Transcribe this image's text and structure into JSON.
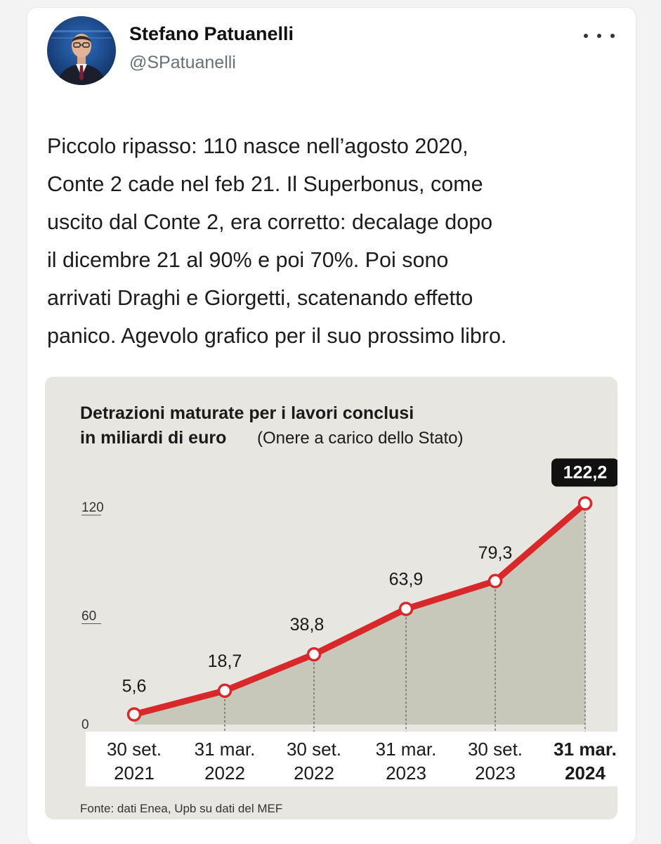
{
  "author": {
    "name": "Stefano Patuanelli",
    "handle": "@SPatuanelli"
  },
  "more_icon": "more-horizontal-icon",
  "tweet_lines": [
    "Piccolo ripasso: 110 nasce nell’agosto 2020,",
    "Conte 2 cade nel feb 21. Il Superbonus, come",
    "uscito dal Conte 2, era corretto: decalage dopo",
    "il dicembre 21 al 90% e poi 70%. Poi sono",
    "arrivati Draghi e Giorgetti, scatenando effetto",
    "panico. Agevolo grafico per il suo prossimo libro."
  ],
  "colors": {
    "line": "#d8282a",
    "area": "#c7c8b9",
    "card_bg": "#e7e6e1"
  },
  "chart_data": {
    "type": "area",
    "title_lines": [
      "Detrazioni maturate per i lavori conclusi",
      "in miliardi di euro"
    ],
    "subtitle": "(Onere a carico dello Stato)",
    "categories": [
      [
        "30 set.",
        "2021"
      ],
      [
        "31 mar.",
        "2022"
      ],
      [
        "30 set.",
        "2022"
      ],
      [
        "31 mar.",
        "2023"
      ],
      [
        "30 set.",
        "2023"
      ],
      [
        "31 mar.",
        "2024"
      ]
    ],
    "values": [
      5.6,
      18.7,
      38.8,
      63.9,
      79.3,
      122.2
    ],
    "value_labels": [
      "5,6",
      "18,7",
      "38,8",
      "63,9",
      "79,3",
      "122,2"
    ],
    "highlight_index": 5,
    "y_ticks": [
      "0",
      "60",
      "120"
    ],
    "ylim": [
      0,
      120
    ],
    "source": "Fonte: dati Enea, Upb su dati del MEF"
  }
}
